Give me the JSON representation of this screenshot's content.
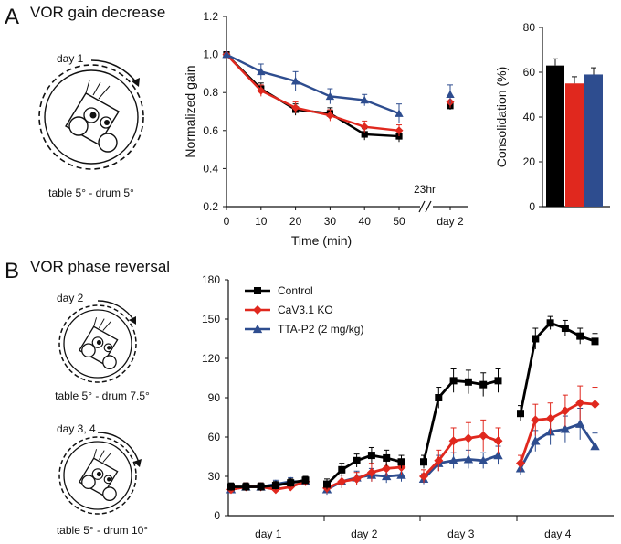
{
  "panels": {
    "A": {
      "letter": "A",
      "title": "VOR gain decrease",
      "schematic": {
        "day_label": "day 1",
        "caption": "table 5° - drum 5°"
      }
    },
    "B": {
      "letter": "B",
      "title": "VOR phase reversal",
      "schematics": [
        {
          "day_label": "day 2",
          "caption": "table 5° - drum 7.5°"
        },
        {
          "day_label": "day 3, 4",
          "caption": "table 5° - drum 10°"
        }
      ]
    }
  },
  "colors": {
    "control": "#000000",
    "ko": "#e0281e",
    "ttap2": "#2e4d8f"
  },
  "chart_data": [
    {
      "id": "gain",
      "type": "line",
      "ylabel": "Normalized gain",
      "xlabel": "Time (min)",
      "ylim": [
        0.2,
        1.2
      ],
      "yticks": [
        "0.2",
        "0.4",
        "0.6",
        "0.8",
        "1.0",
        "1.2"
      ],
      "xticks": [
        "0",
        "10",
        "20",
        "30",
        "40",
        "50"
      ],
      "break_label": "23hr",
      "day2_label": "day 2",
      "x": [
        0,
        10,
        20,
        30,
        40,
        50
      ],
      "series": [
        {
          "name": "Control",
          "values": [
            1.0,
            0.82,
            0.71,
            0.69,
            0.58,
            0.57
          ],
          "err": [
            0,
            0.03,
            0.03,
            0.03,
            0.03,
            0.03
          ],
          "day2": 0.73,
          "day2_err": 0.02
        },
        {
          "name": "CaV3.1 KO",
          "values": [
            1.0,
            0.81,
            0.72,
            0.68,
            0.62,
            0.6
          ],
          "err": [
            0,
            0.03,
            0.03,
            0.03,
            0.03,
            0.03
          ],
          "day2": 0.75,
          "day2_err": 0.03
        },
        {
          "name": "TTA-P2 (2 mg/kg)",
          "values": [
            1.0,
            0.91,
            0.86,
            0.78,
            0.76,
            0.69
          ],
          "err": [
            0,
            0.04,
            0.05,
            0.04,
            0.03,
            0.05
          ],
          "day2": 0.79,
          "day2_err": 0.05
        }
      ]
    },
    {
      "id": "consolidation",
      "type": "bar",
      "ylabel": "Consolidation (%)",
      "ylim": [
        0,
        80
      ],
      "yticks": [
        "0",
        "20",
        "40",
        "60",
        "80"
      ],
      "categories": [
        "Control",
        "CaV3.1 KO",
        "TTA-P2 (2 mg/kg)"
      ],
      "values": [
        63,
        55,
        59
      ],
      "err": [
        3,
        3,
        3
      ]
    },
    {
      "id": "phase",
      "type": "line",
      "ylim": [
        0,
        180
      ],
      "yticks": [
        "0",
        "30",
        "60",
        "90",
        "120",
        "150",
        "180"
      ],
      "categories": [
        "day 1",
        "day 2",
        "day 3",
        "day 4"
      ],
      "legend": [
        "Control",
        "CaV3.1 KO",
        "TTA-P2 (2 mg/kg)"
      ],
      "series": [
        {
          "name": "Control",
          "days": [
            {
              "values": [
                22,
                22,
                22,
                23,
                25,
                27
              ],
              "err": [
                3,
                3,
                3,
                3,
                3,
                3
              ]
            },
            {
              "values": [
                24,
                35,
                42,
                46,
                44,
                41
              ],
              "err": [
                4,
                5,
                5,
                6,
                6,
                5
              ]
            },
            {
              "values": [
                41,
                90,
                103,
                102,
                100,
                103
              ],
              "err": [
                5,
                8,
                9,
                9,
                9,
                9
              ]
            },
            {
              "values": [
                78,
                135,
                147,
                143,
                137,
                133
              ],
              "err": [
                6,
                8,
                5,
                6,
                6,
                6
              ]
            }
          ]
        },
        {
          "name": "CaV3.1 KO",
          "days": [
            {
              "values": [
                20,
                22,
                22,
                20,
                22,
                26
              ],
              "err": [
                3,
                3,
                3,
                3,
                3,
                3
              ]
            },
            {
              "values": [
                21,
                26,
                28,
                33,
                36,
                37
              ],
              "err": [
                4,
                5,
                5,
                7,
                6,
                6
              ]
            },
            {
              "values": [
                30,
                42,
                57,
                59,
                61,
                57
              ],
              "err": [
                5,
                8,
                10,
                12,
                12,
                10
              ]
            },
            {
              "values": [
                40,
                73,
                74,
                80,
                86,
                85
              ],
              "err": [
                6,
                12,
                12,
                12,
                13,
                13
              ]
            }
          ]
        },
        {
          "name": "TTA-P2 (2 mg/kg)",
          "days": [
            {
              "values": [
                20,
                22,
                22,
                24,
                26,
                26
              ],
              "err": [
                3,
                3,
                3,
                3,
                3,
                3
              ]
            },
            {
              "values": [
                20,
                26,
                29,
                31,
                30,
                31
              ],
              "err": [
                4,
                5,
                5,
                5,
                5,
                5
              ]
            },
            {
              "values": [
                28,
                40,
                42,
                43,
                42,
                46
              ],
              "err": [
                4,
                6,
                6,
                7,
                6,
                7
              ]
            },
            {
              "values": [
                36,
                57,
                64,
                66,
                70,
                53
              ],
              "err": [
                5,
                8,
                10,
                10,
                12,
                10
              ]
            }
          ]
        }
      ]
    }
  ]
}
